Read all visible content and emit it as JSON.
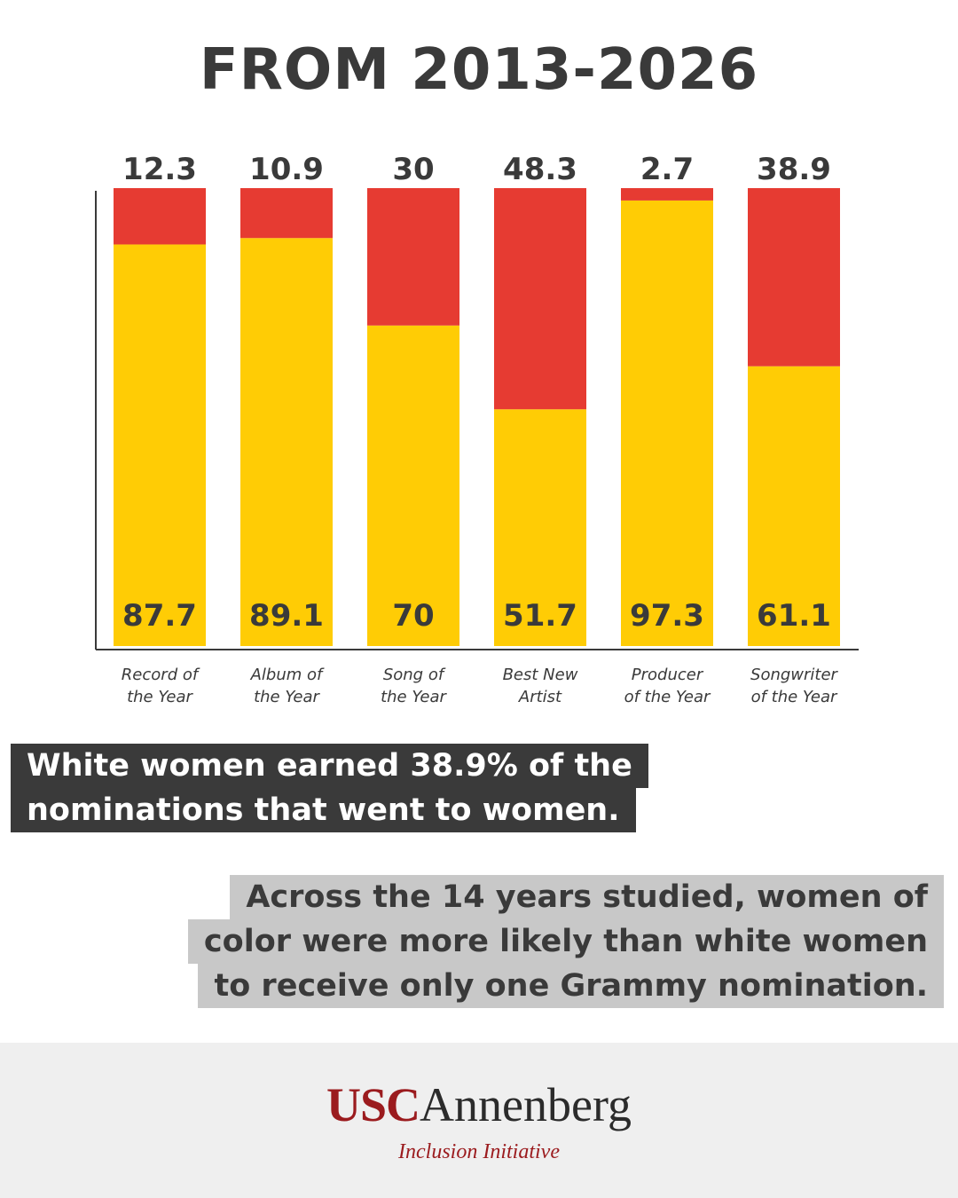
{
  "header": {
    "title": "FROM 2013-2026"
  },
  "chart_data": {
    "type": "bar",
    "stacked": true,
    "categories": [
      [
        "Record of",
        "the Year"
      ],
      [
        "Album of",
        "the Year"
      ],
      [
        "Song of",
        "the Year"
      ],
      [
        "Best New",
        "Artist"
      ],
      [
        "Producer",
        "of the Year"
      ],
      [
        "Songwriter",
        "of the Year"
      ]
    ],
    "series": [
      {
        "values": [
          87.7,
          89.1,
          70,
          51.7,
          97.3,
          61.1
        ],
        "color": "#ffcc05"
      },
      {
        "values": [
          12.3,
          10.9,
          30,
          48.3,
          2.7,
          38.9
        ],
        "color": "#e63b32"
      }
    ],
    "ylim": [
      0,
      100
    ],
    "grid": false
  },
  "callouts": {
    "white_women": [
      "White women earned 38.9% of the",
      "nominations that went to women."
    ],
    "women_of_color": [
      "Across the 14 years studied, women of",
      "color were more likely than white women",
      "to receive only one Grammy nomination."
    ]
  },
  "footer": {
    "logo_usc": "USC",
    "logo_annenberg": "Annenberg",
    "logo_subtitle": "Inclusion Initiative"
  }
}
